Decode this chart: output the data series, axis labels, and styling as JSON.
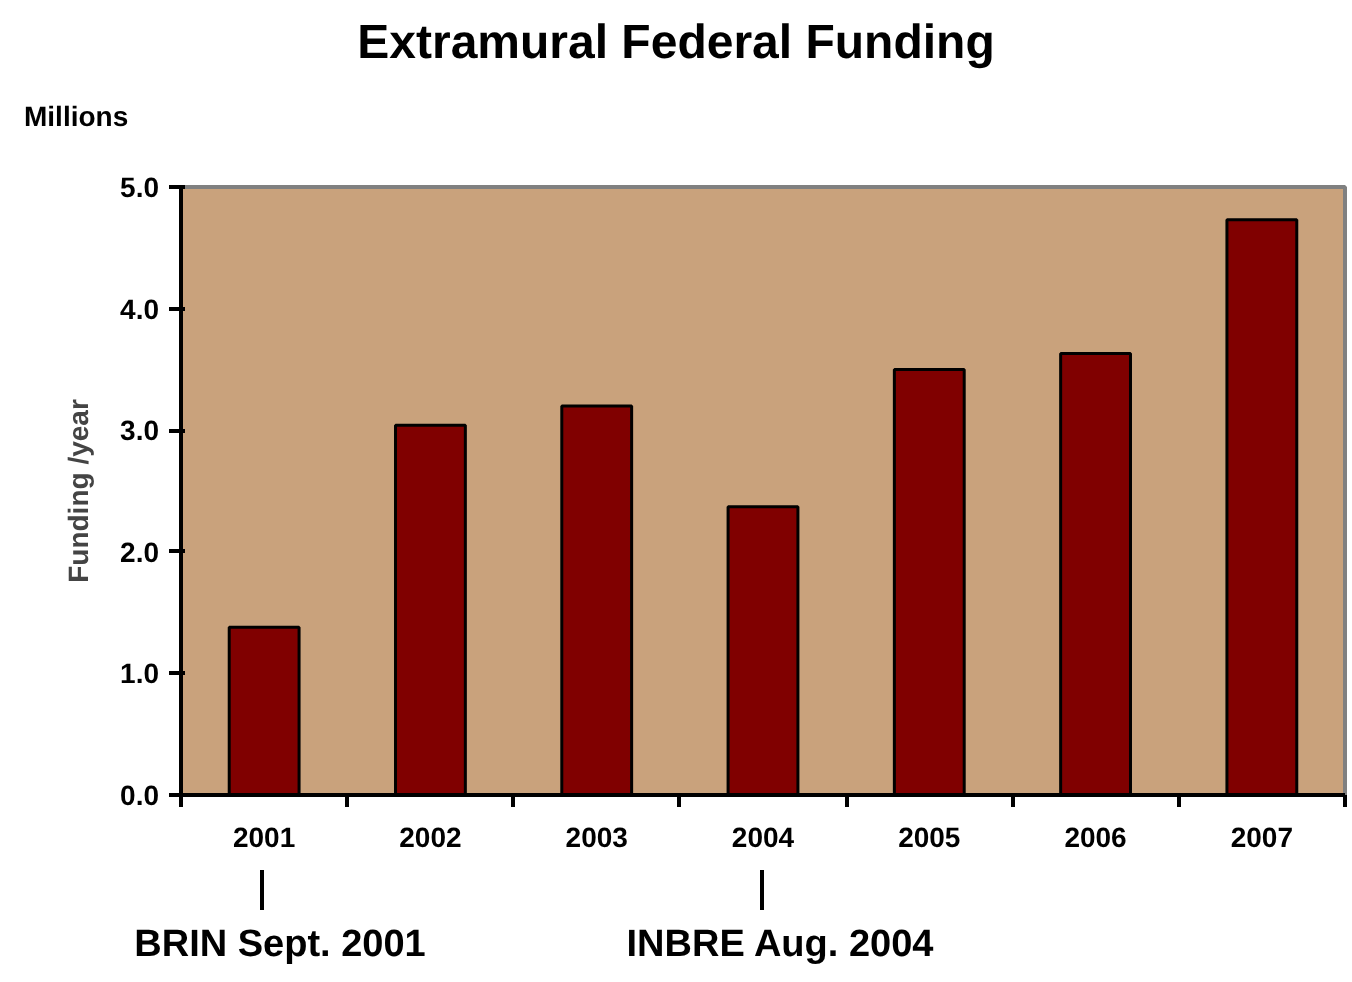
{
  "chart_data": {
    "type": "bar",
    "title": "Extramural Federal Funding",
    "ylabel": "Funding /year",
    "categories": [
      "2001",
      "2002",
      "2003",
      "2004",
      "2005",
      "2006",
      "2007"
    ],
    "series": [
      {
        "color": "#800000",
        "values": [
          1.38,
          3.04,
          3.2,
          2.37,
          3.5,
          3.63,
          4.73
        ]
      }
    ],
    "ylim": [
      0,
      5
    ],
    "yticks": [
      {
        "value": 0,
        "label": "0.0"
      },
      {
        "value": 1,
        "label": "1.0"
      },
      {
        "value": 2,
        "label": "2.0"
      },
      {
        "value": 3,
        "label": "3.0"
      },
      {
        "value": 4,
        "label": "4.0"
      },
      {
        "value": 5,
        "label": "5.0"
      }
    ],
    "grid": false,
    "annotations": [
      "Millions",
      "BRIN Sept. 2001",
      "INBRE Aug. 2004"
    ]
  }
}
